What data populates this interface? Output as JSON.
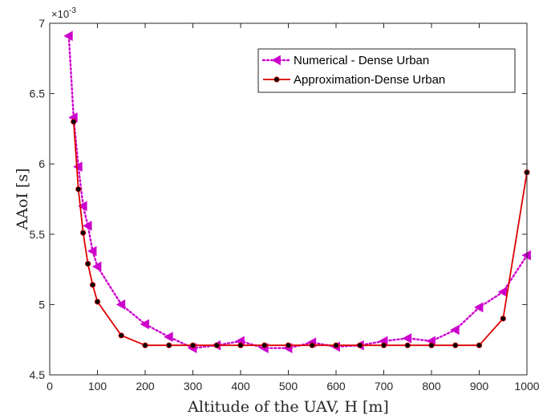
{
  "chart_data": {
    "type": "line",
    "xlabel": "Altitude of the UAV, H [m]",
    "ylabel": "AAoI [s]",
    "y_exponent_label": "×10",
    "y_exponent_power": "-3",
    "xlim": [
      0,
      1000
    ],
    "ylim": [
      4.5,
      7
    ],
    "xticks": [
      0,
      100,
      200,
      300,
      400,
      500,
      600,
      700,
      800,
      900,
      1000
    ],
    "yticks": [
      4.5,
      5,
      5.5,
      6,
      6.5,
      7
    ],
    "grid": false,
    "legend_position": "top-right",
    "series": [
      {
        "name": "Numerical - Dense Urban",
        "color": "#cc00cc",
        "line_style": "dotted",
        "marker": "left-triangle",
        "x": [
          40,
          50,
          60,
          70,
          80,
          90,
          100,
          150,
          200,
          250,
          300,
          350,
          400,
          450,
          500,
          550,
          600,
          650,
          700,
          750,
          800,
          850,
          900,
          950,
          1000
        ],
        "y": [
          6.91,
          6.33,
          5.98,
          5.7,
          5.56,
          5.38,
          5.27,
          5.0,
          4.86,
          4.77,
          4.69,
          4.71,
          4.74,
          4.69,
          4.69,
          4.73,
          4.7,
          4.71,
          4.74,
          4.76,
          4.74,
          4.82,
          4.98,
          5.09,
          5.35
        ]
      },
      {
        "name": "Approximation-Dense Urban",
        "color": "#dd0000",
        "line_style": "solid",
        "marker": "circle",
        "x": [
          50,
          60,
          70,
          80,
          90,
          100,
          150,
          200,
          250,
          300,
          350,
          400,
          450,
          500,
          550,
          600,
          650,
          700,
          750,
          800,
          850,
          900,
          950,
          1000
        ],
        "y": [
          6.3,
          5.82,
          5.51,
          5.29,
          5.14,
          5.02,
          4.78,
          4.71,
          4.71,
          4.71,
          4.71,
          4.71,
          4.71,
          4.71,
          4.71,
          4.71,
          4.71,
          4.71,
          4.71,
          4.71,
          4.71,
          4.71,
          4.9,
          5.94
        ]
      }
    ]
  }
}
